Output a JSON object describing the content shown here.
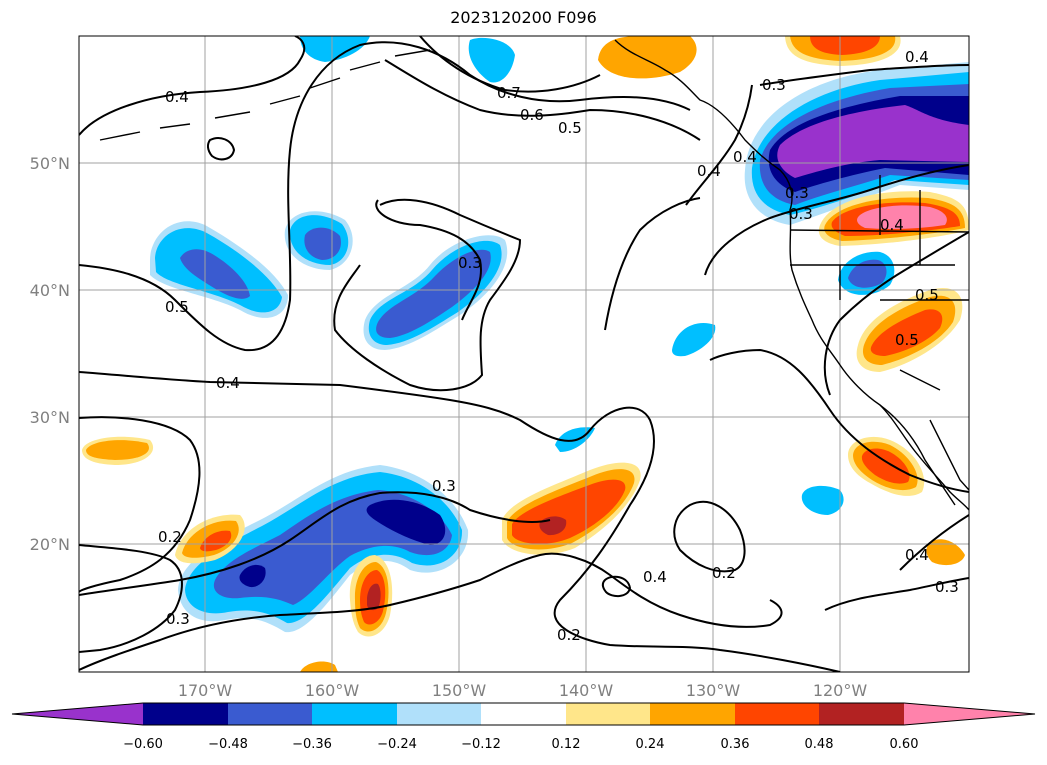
{
  "title": "2023120200 F096",
  "colors": {
    "neg_060": "#9932cc",
    "neg_048": "#00008b",
    "neg_036": "#3a5bd0",
    "neg_024": "#00bfff",
    "neg_012": "#b0e0fa",
    "pos_012": "#ffe68a",
    "pos_024": "#ffa500",
    "pos_036": "#ff4500",
    "pos_048": "#b22222",
    "pos_060": "#ff82ab",
    "contour": "#000000",
    "grid": "#a0a0a0",
    "coast": "#000000"
  },
  "lat_labels": [
    "50°N",
    "40°N",
    "30°N",
    "20°N"
  ],
  "lon_labels": [
    "170°W",
    "160°W",
    "150°W",
    "140°W",
    "130°W",
    "120°W"
  ],
  "colorbar": {
    "labels": [
      "−0.60",
      "−0.48",
      "−0.36",
      "−0.24",
      "−0.12",
      "0.12",
      "0.24",
      "0.36",
      "0.48",
      "0.60"
    ]
  },
  "contour_labels": [
    "0.3",
    "0.4",
    "0.5",
    "0.4",
    "0.3",
    "0.4",
    "0.5",
    "0.3",
    "0.2",
    "0.3",
    "0.7",
    "0.6",
    "0.5",
    "0.4",
    "0.4",
    "0.3",
    "0.2",
    "0.4",
    "0.2",
    "0.4",
    "0.3",
    "0.4",
    "0.5",
    "0.3"
  ]
}
